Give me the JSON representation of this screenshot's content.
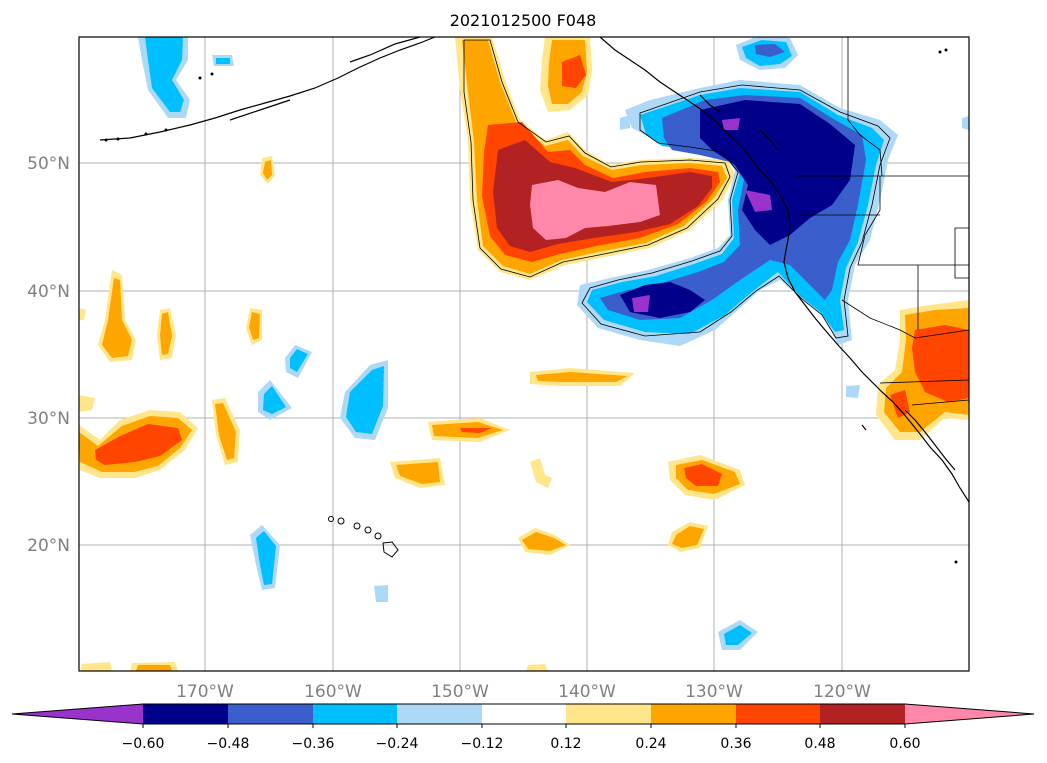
{
  "title": "2021012500 F048",
  "map": {
    "lat_labels": [
      "50°N",
      "40°N",
      "30°N",
      "20°N"
    ],
    "lon_labels": [
      "170°W",
      "160°W",
      "150°W",
      "140°W",
      "130°W",
      "120°W"
    ],
    "extent": {
      "lon": [
        -180,
        -110
      ],
      "lat": [
        10,
        60
      ]
    },
    "grid": true
  },
  "colorbar": {
    "extend": "both",
    "colors": [
      "#9933cc",
      "#00008b",
      "#3a5fcd",
      "#00bfff",
      "#add8f6",
      "#ffffff",
      "#ffe68a",
      "#ffa500",
      "#ff4500",
      "#b22222",
      "#ff88aa"
    ],
    "tick_labels": [
      "−0.60",
      "−0.48",
      "−0.36",
      "−0.24",
      "−0.12",
      "0.12",
      "0.24",
      "0.36",
      "0.48",
      "0.60"
    ]
  }
}
